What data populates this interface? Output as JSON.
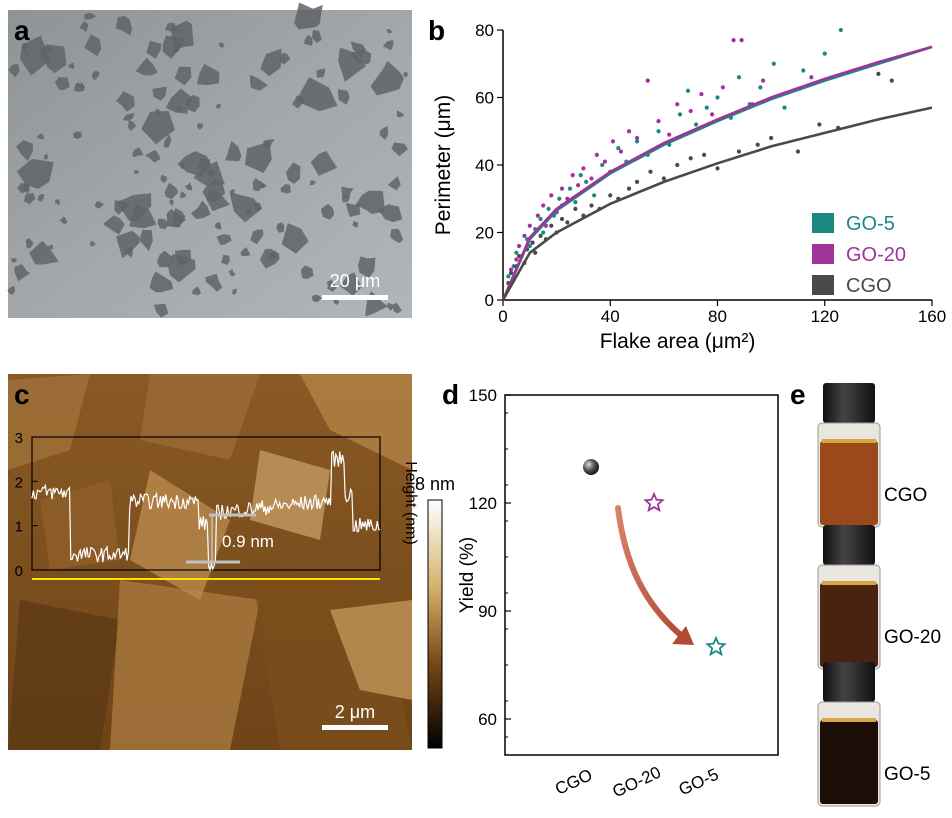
{
  "panels": {
    "a": {
      "letter": "a",
      "scalebar_label": "20 μm"
    },
    "b": {
      "letter": "b"
    },
    "c": {
      "letter": "c",
      "scalebar_label": "2 μm",
      "step_label": "0.9 nm",
      "colorbar_max": "8 nm",
      "y_title": "Height (nm)",
      "y_ticks": [
        "0",
        "1",
        "2",
        "3"
      ]
    },
    "d": {
      "letter": "d"
    },
    "e": {
      "letter": "e",
      "vials": [
        {
          "label": "CGO",
          "color": "#9a4a1a"
        },
        {
          "label": "GO-20",
          "color": "#4a2210"
        },
        {
          "label": "GO-5",
          "color": "#1c0e06"
        }
      ]
    }
  },
  "chart_data": [
    {
      "type": "scatter",
      "panel": "b",
      "title": "",
      "xlabel": "Flake area (μm²)",
      "ylabel": "Perimeter (μm)",
      "xlim": [
        0,
        160
      ],
      "ylim": [
        0,
        80
      ],
      "x_ticks": [
        "0",
        "40",
        "80",
        "120",
        "160"
      ],
      "y_ticks": [
        "0",
        "20",
        "40",
        "60",
        "80"
      ],
      "legend_position": "bottom-right",
      "series": [
        {
          "name": "GO-5",
          "color": "#1a8a80",
          "points": [
            [
              2,
              7
            ],
            [
              4,
              10
            ],
            [
              5,
              14
            ],
            [
              7,
              13
            ],
            [
              9,
              18
            ],
            [
              10,
              16
            ],
            [
              12,
              21
            ],
            [
              14,
              24
            ],
            [
              15,
              20
            ],
            [
              17,
              27
            ],
            [
              19,
              25
            ],
            [
              21,
              30
            ],
            [
              22,
              28
            ],
            [
              25,
              33
            ],
            [
              27,
              29
            ],
            [
              29,
              37
            ],
            [
              31,
              35
            ],
            [
              34,
              31
            ],
            [
              37,
              40
            ],
            [
              40,
              38
            ],
            [
              43,
              45
            ],
            [
              46,
              41
            ],
            [
              50,
              47
            ],
            [
              54,
              43
            ],
            [
              58,
              50
            ],
            [
              62,
              46
            ],
            [
              66,
              55
            ],
            [
              69,
              62
            ],
            [
              72,
              52
            ],
            [
              76,
              57
            ],
            [
              80,
              60
            ],
            [
              85,
              54
            ],
            [
              88,
              66
            ],
            [
              92,
              58
            ],
            [
              96,
              63
            ],
            [
              101,
              70
            ],
            [
              105,
              57
            ],
            [
              112,
              68
            ],
            [
              126,
              80
            ],
            [
              120,
              73
            ]
          ],
          "fit": [
            [
              0,
              0
            ],
            [
              10,
              18
            ],
            [
              20,
              26.5
            ],
            [
              40,
              37.5
            ],
            [
              60,
              46
            ],
            [
              80,
              53
            ],
            [
              100,
              59.5
            ],
            [
              120,
              65
            ],
            [
              140,
              70
            ],
            [
              160,
              75
            ]
          ]
        },
        {
          "name": "GO-20",
          "color": "#a0339a",
          "points": [
            [
              3,
              9
            ],
            [
              5,
              12
            ],
            [
              6,
              16
            ],
            [
              8,
              19
            ],
            [
              10,
              22
            ],
            [
              11,
              17
            ],
            [
              13,
              25
            ],
            [
              15,
              28
            ],
            [
              16,
              22
            ],
            [
              18,
              31
            ],
            [
              20,
              26
            ],
            [
              22,
              33
            ],
            [
              24,
              30
            ],
            [
              26,
              37
            ],
            [
              28,
              34
            ],
            [
              30,
              39
            ],
            [
              33,
              36
            ],
            [
              35,
              43
            ],
            [
              38,
              41
            ],
            [
              41,
              47
            ],
            [
              44,
              44
            ],
            [
              47,
              50
            ],
            [
              50,
              48
            ],
            [
              54,
              65
            ],
            [
              58,
              53
            ],
            [
              62,
              49
            ],
            [
              65,
              58
            ],
            [
              70,
              56
            ],
            [
              74,
              61
            ],
            [
              78,
              55
            ],
            [
              82,
              63
            ],
            [
              86,
              77
            ],
            [
              89,
              77
            ],
            [
              93,
              58
            ],
            [
              97,
              65
            ],
            [
              108,
              62
            ],
            [
              115,
              66
            ]
          ],
          "fit": [
            [
              0,
              0
            ],
            [
              10,
              18.5
            ],
            [
              20,
              27
            ],
            [
              40,
              38
            ],
            [
              60,
              46.5
            ],
            [
              80,
              53.5
            ],
            [
              100,
              60
            ],
            [
              120,
              65.5
            ],
            [
              140,
              70.5
            ],
            [
              160,
              75
            ]
          ]
        },
        {
          "name": "CGO",
          "color": "#4a4a4a",
          "points": [
            [
              2,
              5
            ],
            [
              3,
              8
            ],
            [
              5,
              10
            ],
            [
              6,
              13
            ],
            [
              8,
              11
            ],
            [
              9,
              15
            ],
            [
              11,
              17
            ],
            [
              12,
              14
            ],
            [
              14,
              19
            ],
            [
              16,
              18
            ],
            [
              18,
              22
            ],
            [
              20,
              20
            ],
            [
              22,
              24
            ],
            [
              24,
              23
            ],
            [
              27,
              27
            ],
            [
              30,
              25
            ],
            [
              33,
              28
            ],
            [
              36,
              27
            ],
            [
              40,
              31
            ],
            [
              43,
              30
            ],
            [
              47,
              33
            ],
            [
              50,
              35
            ],
            [
              55,
              38
            ],
            [
              60,
              36
            ],
            [
              65,
              40
            ],
            [
              70,
              42
            ],
            [
              75,
              43
            ],
            [
              80,
              39
            ],
            [
              88,
              44
            ],
            [
              95,
              46
            ],
            [
              100,
              48
            ],
            [
              110,
              44
            ],
            [
              118,
              52
            ],
            [
              125,
              51
            ],
            [
              140,
              67
            ],
            [
              145,
              65
            ]
          ],
          "fit": [
            [
              0,
              0
            ],
            [
              10,
              14
            ],
            [
              20,
              20
            ],
            [
              40,
              28.5
            ],
            [
              60,
              35
            ],
            [
              80,
              40.5
            ],
            [
              100,
              45.5
            ],
            [
              120,
              49.5
            ],
            [
              140,
              53.5
            ],
            [
              160,
              57
            ]
          ]
        }
      ]
    },
    {
      "type": "scatter",
      "panel": "d",
      "title": "",
      "xlabel": "",
      "ylabel": "Yield (%)",
      "categories": [
        "CGO",
        "GO-20",
        "GO-5"
      ],
      "values": [
        130,
        120,
        80
      ],
      "markers": [
        "sphere",
        "star-outline",
        "star-outline"
      ],
      "colors": [
        "#333333",
        "#a0339a",
        "#1a8a80"
      ],
      "ylim": [
        50,
        150
      ],
      "y_ticks": [
        "60",
        "90",
        "120",
        "150"
      ]
    },
    {
      "type": "line",
      "panel": "c",
      "title": "",
      "ylabel": "Height (nm)",
      "ylim": [
        0,
        3
      ],
      "annotation": "0.9 nm"
    }
  ]
}
